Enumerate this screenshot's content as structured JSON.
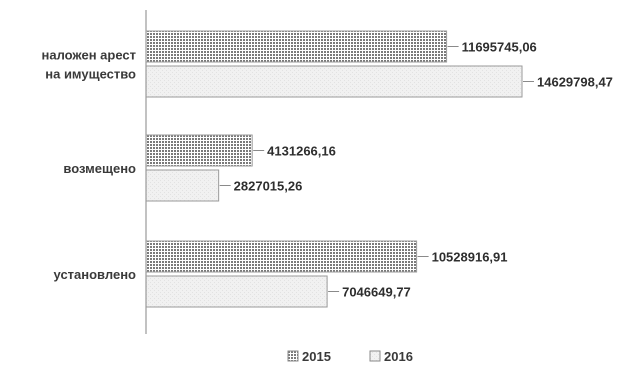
{
  "chart_data": {
    "type": "bar",
    "orientation": "horizontal",
    "categories": [
      "наложен арест на имущество",
      "возмещено",
      "установлено"
    ],
    "category_lines": [
      [
        "наложен арест",
        "на имущество"
      ],
      [
        "возмещено"
      ],
      [
        "установлено"
      ]
    ],
    "series": [
      {
        "name": "2015",
        "values": [
          11695745.06,
          4131266.16,
          10528916.91
        ],
        "labels": [
          "11695745,06",
          "4131266,16",
          "10528916,91"
        ],
        "fill": "dotted",
        "color": "#8a8a8a"
      },
      {
        "name": "2016",
        "values": [
          14629798.47,
          2827015.26,
          7046649.77
        ],
        "labels": [
          "14629798,47",
          "2827015,26",
          "7046649,77"
        ],
        "fill": "light",
        "color": "#eeeeee"
      }
    ],
    "title": "",
    "xlabel": "",
    "ylabel": "",
    "xlim": [
      0,
      14629798.47
    ],
    "grid": false,
    "legend_position": "bottom"
  }
}
